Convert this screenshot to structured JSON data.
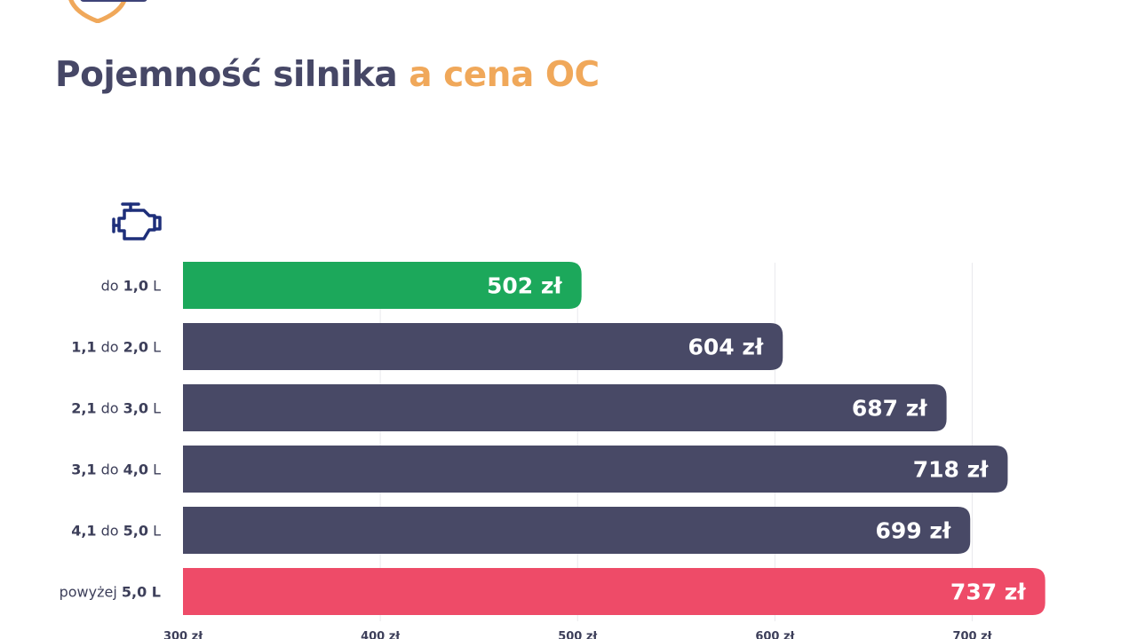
{
  "title": {
    "main": "Pojemność silnika",
    "accent": "a cena OC"
  },
  "logo": {
    "icon": "shield-car-logo-icon",
    "color": "#f0a85a"
  },
  "engine_icon": {
    "icon": "engine-icon",
    "color": "#1e2f7a"
  },
  "colors": {
    "lowest": "#1ca85b",
    "normal": "#484966",
    "highest": "#ee4b68",
    "grid": "#e9e9ee"
  },
  "chart_data": {
    "type": "bar",
    "orientation": "horizontal",
    "title": "Pojemność silnika a cena OC",
    "categories": [
      "do 1,0 L",
      "1,1 do 2,0 L",
      "2,1 do 3,0 L",
      "3,1 do 4,0 L",
      "4,1 do 5,0 L",
      "powyżej 5,0 L"
    ],
    "category_parts": [
      [
        {
          "t": "do ",
          "b": false
        },
        {
          "t": "1,0",
          "b": true
        },
        {
          "t": " L",
          "b": false
        }
      ],
      [
        {
          "t": "1,1",
          "b": true
        },
        {
          "t": " do ",
          "b": false
        },
        {
          "t": "2,0",
          "b": true
        },
        {
          "t": " L",
          "b": false
        }
      ],
      [
        {
          "t": "2,1",
          "b": true
        },
        {
          "t": " do ",
          "b": false
        },
        {
          "t": "3,0",
          "b": true
        },
        {
          "t": " L",
          "b": false
        }
      ],
      [
        {
          "t": "3,1",
          "b": true
        },
        {
          "t": " do ",
          "b": false
        },
        {
          "t": "4,0",
          "b": true
        },
        {
          "t": " L",
          "b": false
        }
      ],
      [
        {
          "t": "4,1",
          "b": true
        },
        {
          "t": " do ",
          "b": false
        },
        {
          "t": "5,0",
          "b": true
        },
        {
          "t": " L",
          "b": false
        }
      ],
      [
        {
          "t": "powyżej ",
          "b": false
        },
        {
          "t": "5,0 L",
          "b": true
        }
      ]
    ],
    "values": [
      502,
      604,
      687,
      718,
      699,
      737
    ],
    "value_labels": [
      "502 zł",
      "604 zł",
      "687 zł",
      "718 zł",
      "699 zł",
      "737 zł"
    ],
    "bar_colors": [
      "#1ca85b",
      "#484966",
      "#484966",
      "#484966",
      "#484966",
      "#ee4b68"
    ],
    "xlim": [
      300,
      725
    ],
    "xticks": [
      300,
      400,
      500,
      600,
      700
    ],
    "xtick_labels": [
      "300 zł",
      "400 zł",
      "500 zł",
      "600 zł",
      "700 zł"
    ],
    "grid": true,
    "legend": "none",
    "xlabel": "",
    "ylabel": ""
  }
}
